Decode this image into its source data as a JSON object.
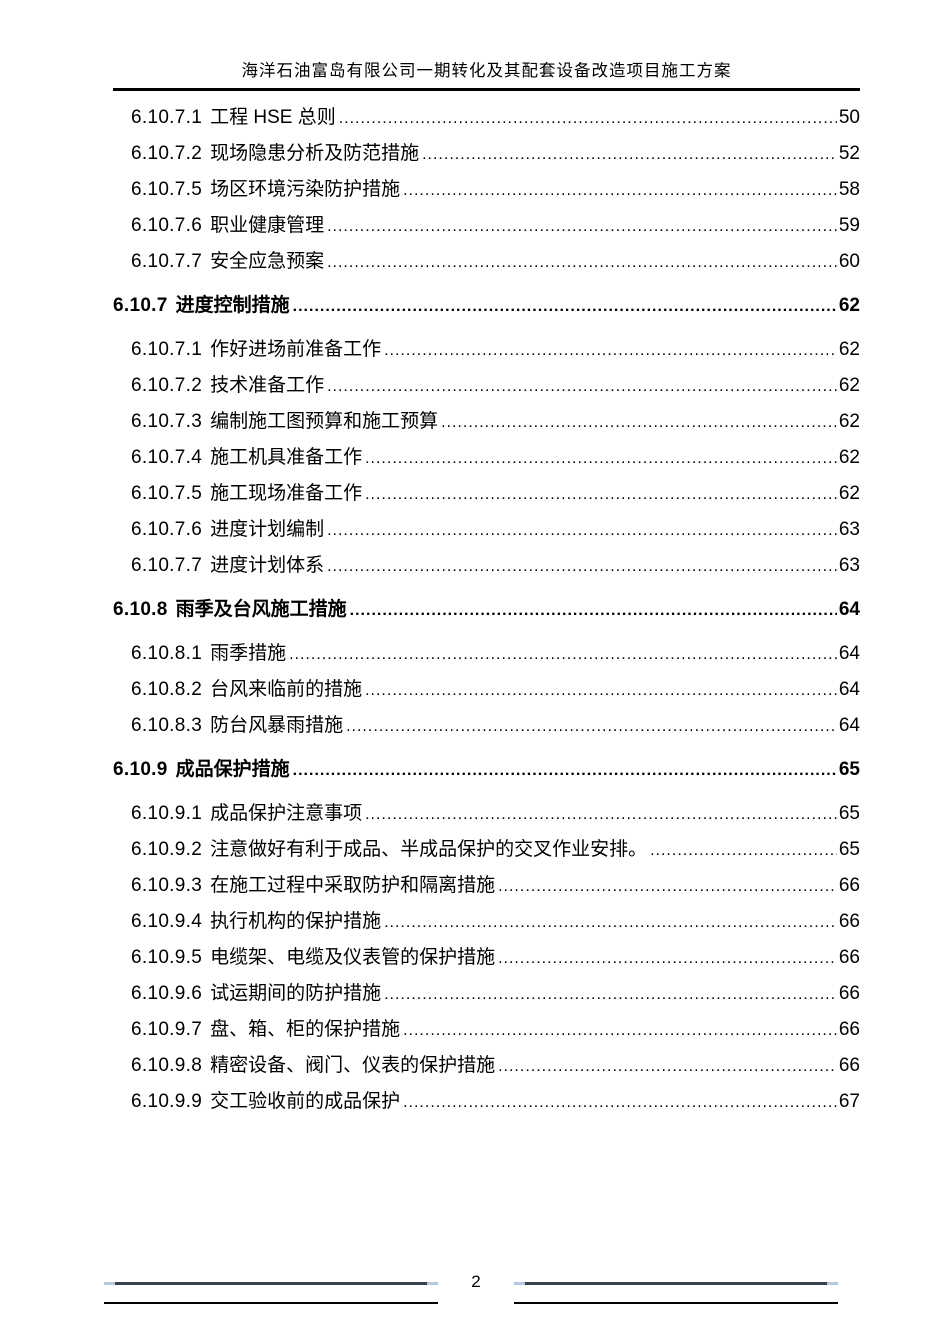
{
  "header": {
    "title": "海洋石油富岛有限公司一期转化及其配套设备改造项目施工方案"
  },
  "toc": {
    "entries": [
      {
        "number": "6.10.7.1",
        "title": "工程 HSE 总则",
        "page": "50",
        "level": "sub"
      },
      {
        "number": "6.10.7.2",
        "title": "现场隐患分析及防范措施",
        "page": "52",
        "level": "sub"
      },
      {
        "number": "6.10.7.5",
        "title": "场区环境污染防护措施",
        "page": "58",
        "level": "sub"
      },
      {
        "number": "6.10.7.6",
        "title": "职业健康管理",
        "page": "59",
        "level": "sub"
      },
      {
        "number": "6.10.7.7",
        "title": "安全应急预案",
        "page": "60",
        "level": "sub"
      },
      {
        "number": "6.10.7",
        "title": "进度控制措施",
        "page": "62",
        "level": "section"
      },
      {
        "number": "6.10.7.1",
        "title": "作好进场前准备工作",
        "page": "62",
        "level": "sub"
      },
      {
        "number": "6.10.7.2",
        "title": "技术准备工作",
        "page": "62",
        "level": "sub"
      },
      {
        "number": "6.10.7.3",
        "title": "编制施工图预算和施工预算",
        "page": "62",
        "level": "sub"
      },
      {
        "number": "6.10.7.4",
        "title": "施工机具准备工作",
        "page": "62",
        "level": "sub"
      },
      {
        "number": "6.10.7.5",
        "title": "施工现场准备工作",
        "page": "62",
        "level": "sub"
      },
      {
        "number": "6.10.7.6",
        "title": "进度计划编制",
        "page": "63",
        "level": "sub"
      },
      {
        "number": "6.10.7.7",
        "title": "进度计划体系",
        "page": "63",
        "level": "sub"
      },
      {
        "number": "6.10.8",
        "title": "雨季及台风施工措施",
        "page": "64",
        "level": "section"
      },
      {
        "number": "6.10.8.1",
        "title": "雨季措施",
        "page": "64",
        "level": "sub"
      },
      {
        "number": "6.10.8.2",
        "title": "台风来临前的措施",
        "page": "64",
        "level": "sub"
      },
      {
        "number": "6.10.8.3",
        "title": "防台风暴雨措施",
        "page": "64",
        "level": "sub"
      },
      {
        "number": "6.10.9",
        "title": "成品保护措施",
        "page": "65",
        "level": "section"
      },
      {
        "number": "6.10.9.1",
        "title": "成品保护注意事项",
        "page": "65",
        "level": "sub"
      },
      {
        "number": "6.10.9.2",
        "title": "注意做好有利于成品、半成品保护的交叉作业安排。",
        "page": "65",
        "level": "sub"
      },
      {
        "number": "6.10.9.3",
        "title": "在施工过程中采取防护和隔离措施",
        "page": "66",
        "level": "sub"
      },
      {
        "number": "6.10.9.4",
        "title": "执行机构的保护措施",
        "page": "66",
        "level": "sub"
      },
      {
        "number": "6.10.9.5",
        "title": "电缆架、电缆及仪表管的保护措施",
        "page": "66",
        "level": "sub"
      },
      {
        "number": "6.10.9.6",
        "title": "试运期间的防护措施",
        "page": "66",
        "level": "sub"
      },
      {
        "number": "6.10.9.7",
        "title": "盘、箱、柜的保护措施",
        "page": "66",
        "level": "sub"
      },
      {
        "number": "6.10.9.8",
        "title": "精密设备、阀门、仪表的保护措施",
        "page": "66",
        "level": "sub"
      },
      {
        "number": "6.10.9.9",
        "title": "交工验收前的成品保护",
        "page": "67",
        "level": "sub"
      }
    ]
  },
  "footer": {
    "page_number": "2"
  },
  "colors": {
    "text": "#000000",
    "header_rule": "#000000",
    "footer_rule_dark": "#39404d",
    "footer_rule_cap": "#b7c9e2",
    "footer_rule_thin": "#000000"
  }
}
